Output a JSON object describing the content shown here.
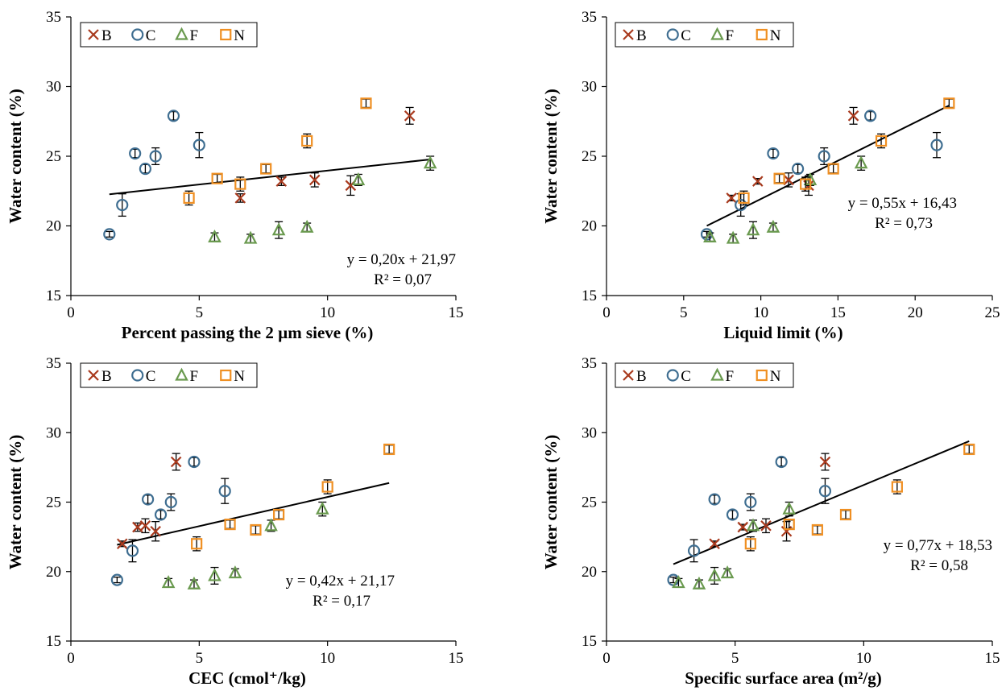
{
  "colors": {
    "B": "#a93a1e",
    "C": "#3f6e91",
    "F": "#6a9a4f",
    "N": "#ef8f22",
    "trendline": "#000000",
    "errorbar": "#000000"
  },
  "legend": {
    "placement": "top-left",
    "entries": [
      {
        "key": "B",
        "label": "B",
        "marker": "x-icon"
      },
      {
        "key": "C",
        "label": "C",
        "marker": "circle-icon"
      },
      {
        "key": "F",
        "label": "F",
        "marker": "triangle-icon"
      },
      {
        "key": "N",
        "label": "N",
        "marker": "square-icon"
      }
    ]
  },
  "chart_data": [
    {
      "type": "scatter",
      "title": "",
      "xlabel": "Percent passing the 2 µm sieve (%)",
      "ylabel": "Water content (%)",
      "xlim": [
        0,
        15
      ],
      "ylim": [
        15,
        35
      ],
      "xticks": [
        0,
        5,
        10,
        15
      ],
      "yticks": [
        15,
        20,
        25,
        30,
        35
      ],
      "grid": false,
      "series": [
        {
          "name": "B",
          "marker": "x",
          "points": [
            [
              6.6,
              22.0,
              0.3
            ],
            [
              8.2,
              23.2,
              0.3
            ],
            [
              9.5,
              23.3,
              0.5
            ],
            [
              10.9,
              22.9,
              0.7
            ],
            [
              13.2,
              27.9,
              0.6
            ]
          ]
        },
        {
          "name": "C",
          "marker": "circle",
          "points": [
            [
              1.5,
              19.4,
              0.2
            ],
            [
              2.0,
              21.5,
              0.8
            ],
            [
              2.5,
              25.2,
              0.3
            ],
            [
              2.9,
              24.1,
              0.3
            ],
            [
              3.3,
              25.0,
              0.6
            ],
            [
              4.0,
              27.9,
              0.3
            ],
            [
              5.0,
              25.8,
              0.9
            ]
          ]
        },
        {
          "name": "F",
          "marker": "triangle",
          "points": [
            [
              5.6,
              19.2,
              0.3
            ],
            [
              7.0,
              19.1,
              0.3
            ],
            [
              8.1,
              19.7,
              0.6
            ],
            [
              9.2,
              19.9,
              0.3
            ],
            [
              11.2,
              23.3,
              0.4
            ],
            [
              14.0,
              24.5,
              0.5
            ]
          ]
        },
        {
          "name": "N",
          "marker": "square",
          "points": [
            [
              4.6,
              22.0,
              0.5
            ],
            [
              5.7,
              23.4,
              0.3
            ],
            [
              6.6,
              23.0,
              0.5
            ],
            [
              7.6,
              24.1,
              0.3
            ],
            [
              9.2,
              26.1,
              0.5
            ],
            [
              11.5,
              28.8,
              0.3
            ]
          ]
        }
      ],
      "trendline": {
        "slope": 0.2,
        "intercept": 21.97,
        "x_range": [
          1.5,
          14.0
        ],
        "equation": "y = 0,20x + 21,97",
        "r2": "R² = 0,07"
      }
    },
    {
      "type": "scatter",
      "title": "",
      "xlabel": "Liquid limit (%)",
      "ylabel": "Water content (%)",
      "xlim": [
        0,
        25
      ],
      "ylim": [
        15,
        35
      ],
      "xticks": [
        0,
        5,
        10,
        15,
        20,
        25
      ],
      "yticks": [
        15,
        20,
        25,
        30,
        35
      ],
      "grid": false,
      "series": [
        {
          "name": "B",
          "marker": "x",
          "points": [
            [
              8.1,
              22.0,
              0.2
            ],
            [
              9.8,
              23.2,
              0.2
            ],
            [
              11.8,
              23.3,
              0.5
            ],
            [
              13.1,
              22.9,
              0.7
            ],
            [
              16.0,
              27.9,
              0.6
            ]
          ]
        },
        {
          "name": "C",
          "marker": "circle",
          "points": [
            [
              6.5,
              19.4,
              0.2
            ],
            [
              8.7,
              21.5,
              0.8
            ],
            [
              10.8,
              25.2,
              0.3
            ],
            [
              12.4,
              24.1,
              0.3
            ],
            [
              14.1,
              25.0,
              0.6
            ],
            [
              17.1,
              27.9,
              0.3
            ],
            [
              21.4,
              25.8,
              0.9
            ]
          ]
        },
        {
          "name": "F",
          "marker": "triangle",
          "points": [
            [
              6.7,
              19.2,
              0.3
            ],
            [
              8.2,
              19.1,
              0.3
            ],
            [
              9.5,
              19.7,
              0.6
            ],
            [
              10.8,
              19.9,
              0.3
            ],
            [
              13.2,
              23.3,
              0.4
            ],
            [
              16.5,
              24.5,
              0.5
            ]
          ]
        },
        {
          "name": "N",
          "marker": "square",
          "points": [
            [
              8.9,
              22.0,
              0.5
            ],
            [
              11.2,
              23.4,
              0.3
            ],
            [
              12.9,
              23.0,
              0.5
            ],
            [
              14.7,
              24.1,
              0.3
            ],
            [
              17.8,
              26.1,
              0.5
            ],
            [
              22.2,
              28.8,
              0.3
            ]
          ]
        }
      ],
      "trendline": {
        "slope": 0.55,
        "intercept": 16.43,
        "x_range": [
          6.5,
          22.2
        ],
        "equation": "y = 0,55x + 16,43",
        "r2": "R² = 0,73"
      }
    },
    {
      "type": "scatter",
      "title": "",
      "xlabel": "CEC (cmol⁺/kg)",
      "ylabel": "Water content (%)",
      "xlim": [
        0,
        15
      ],
      "ylim": [
        15,
        35
      ],
      "xticks": [
        0,
        5,
        10,
        15
      ],
      "yticks": [
        15,
        20,
        25,
        30,
        35
      ],
      "grid": false,
      "series": [
        {
          "name": "B",
          "marker": "x",
          "points": [
            [
              2.0,
              22.0,
              0.2
            ],
            [
              2.6,
              23.2,
              0.3
            ],
            [
              2.9,
              23.3,
              0.5
            ],
            [
              3.3,
              22.9,
              0.7
            ],
            [
              4.1,
              27.9,
              0.6
            ]
          ]
        },
        {
          "name": "C",
          "marker": "circle",
          "points": [
            [
              1.8,
              19.4,
              0.2
            ],
            [
              2.4,
              21.5,
              0.8
            ],
            [
              3.0,
              25.2,
              0.3
            ],
            [
              3.5,
              24.1,
              0.3
            ],
            [
              3.9,
              25.0,
              0.6
            ],
            [
              4.8,
              27.9,
              0.3
            ],
            [
              6.0,
              25.8,
              0.9
            ]
          ]
        },
        {
          "name": "F",
          "marker": "triangle",
          "points": [
            [
              3.8,
              19.2,
              0.3
            ],
            [
              4.8,
              19.1,
              0.3
            ],
            [
              5.6,
              19.7,
              0.6
            ],
            [
              6.4,
              19.9,
              0.3
            ],
            [
              7.8,
              23.3,
              0.4
            ],
            [
              9.8,
              24.5,
              0.5
            ]
          ]
        },
        {
          "name": "N",
          "marker": "square",
          "points": [
            [
              4.9,
              22.0,
              0.5
            ],
            [
              6.2,
              23.4,
              0.3
            ],
            [
              7.2,
              23.0,
              0.3
            ],
            [
              8.1,
              24.1,
              0.3
            ],
            [
              10.0,
              26.1,
              0.5
            ],
            [
              12.4,
              28.8,
              0.3
            ]
          ]
        }
      ],
      "trendline": {
        "slope": 0.42,
        "intercept": 21.17,
        "x_range": [
          1.8,
          12.4
        ],
        "equation": "y = 0,42x + 21,17",
        "r2": "R² = 0,17"
      }
    },
    {
      "type": "scatter",
      "title": "",
      "xlabel": "Specific surface area (m²/g)",
      "ylabel": "Water content (%)",
      "xlim": [
        0,
        15
      ],
      "ylim": [
        15,
        35
      ],
      "xticks": [
        0,
        5,
        10,
        15
      ],
      "yticks": [
        15,
        20,
        25,
        30,
        35
      ],
      "grid": false,
      "series": [
        {
          "name": "B",
          "marker": "x",
          "points": [
            [
              4.2,
              22.0,
              0.2
            ],
            [
              5.3,
              23.2,
              0.2
            ],
            [
              6.2,
              23.3,
              0.5
            ],
            [
              7.0,
              22.9,
              0.7
            ],
            [
              8.5,
              27.9,
              0.6
            ]
          ]
        },
        {
          "name": "C",
          "marker": "circle",
          "points": [
            [
              2.6,
              19.4,
              0.2
            ],
            [
              3.4,
              21.5,
              0.8
            ],
            [
              4.2,
              25.2,
              0.3
            ],
            [
              4.9,
              24.1,
              0.3
            ],
            [
              5.6,
              25.0,
              0.6
            ],
            [
              6.8,
              27.9,
              0.3
            ],
            [
              8.5,
              25.8,
              0.9
            ]
          ]
        },
        {
          "name": "F",
          "marker": "triangle",
          "points": [
            [
              2.8,
              19.2,
              0.3
            ],
            [
              3.6,
              19.1,
              0.3
            ],
            [
              4.2,
              19.7,
              0.6
            ],
            [
              4.7,
              19.9,
              0.3
            ],
            [
              5.7,
              23.3,
              0.4
            ],
            [
              7.1,
              24.5,
              0.5
            ]
          ]
        },
        {
          "name": "N",
          "marker": "square",
          "points": [
            [
              5.6,
              22.0,
              0.5
            ],
            [
              7.1,
              23.4,
              0.3
            ],
            [
              8.2,
              23.0,
              0.3
            ],
            [
              9.3,
              24.1,
              0.3
            ],
            [
              11.3,
              26.1,
              0.5
            ],
            [
              14.1,
              28.8,
              0.3
            ]
          ]
        }
      ],
      "trendline": {
        "slope": 0.77,
        "intercept": 18.53,
        "x_range": [
          2.6,
          14.1
        ],
        "equation": "y = 0,77x + 18,53",
        "r2": "R² = 0,58"
      }
    }
  ]
}
